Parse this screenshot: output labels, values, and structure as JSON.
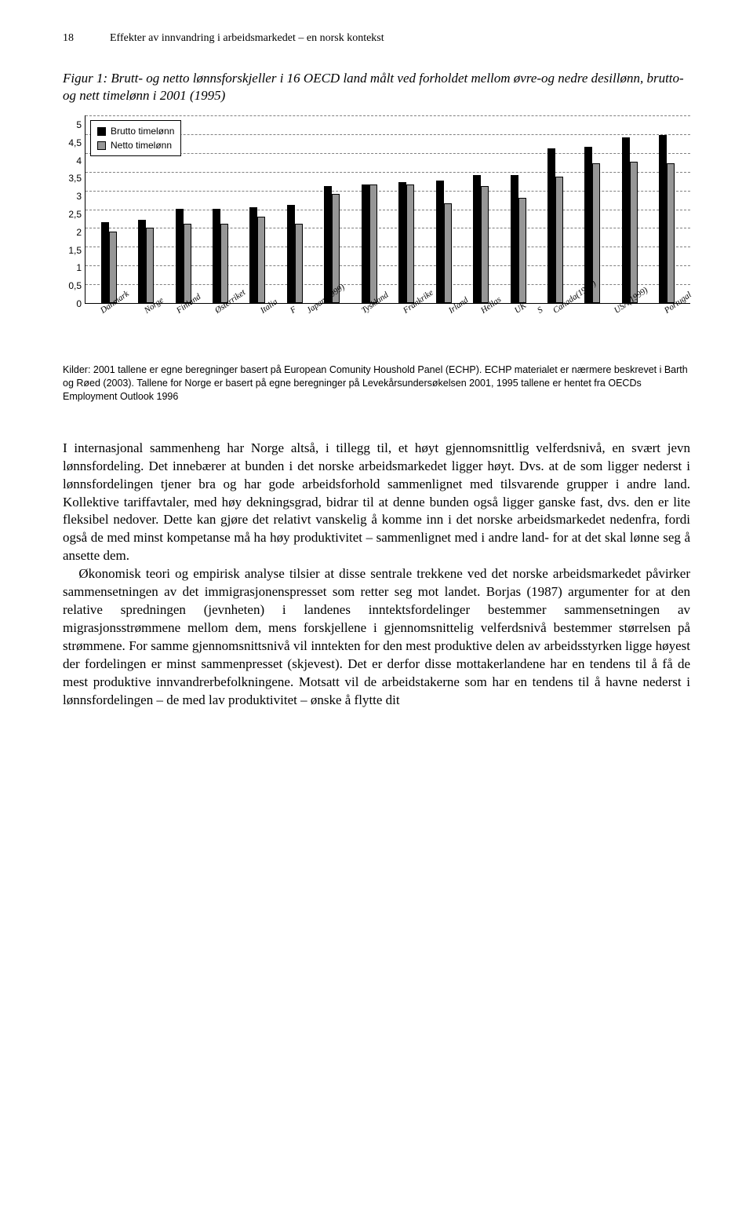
{
  "page_number": "18",
  "header_title": "Effekter av innvandring i arbeidsmarkedet – en norsk kontekst",
  "figure_caption": "Figur 1: Brutt- og netto lønnsforskjeller i 16 OECD land målt ved forholdet mellom øvre-og nedre desillønn, brutto-og nett timelønn i 2001 (1995)",
  "chart": {
    "type": "bar",
    "legend": {
      "brutto": "Brutto timelønn",
      "netto": "Netto timelønn"
    },
    "colors": {
      "brutto": "#000000",
      "netto": "#969696",
      "grid": "#808080",
      "background": "#ffffff"
    },
    "ylim": [
      0,
      5
    ],
    "ytick_step": 0.5,
    "yticks": [
      "5",
      "4,5",
      "4",
      "3,5",
      "3",
      "2,5",
      "2",
      "1,5",
      "1",
      "0,5",
      "0"
    ],
    "categories": [
      "Danmark",
      "Norge",
      "Finland",
      "Østerriket",
      "Italia",
      "F",
      "Japan(1999)",
      "Tyskland",
      "Frankrike",
      "Irland",
      "Hellas",
      "UK",
      "S",
      "Canada(1994)",
      "USA(1999)",
      "Portugal"
    ],
    "brutto": [
      2.15,
      2.2,
      2.5,
      2.5,
      2.55,
      2.6,
      3.1,
      3.15,
      3.2,
      3.25,
      3.4,
      3.4,
      4.1,
      4.15,
      4.4,
      4.45
    ],
    "netto": [
      1.9,
      2.0,
      2.1,
      2.1,
      2.3,
      2.1,
      2.9,
      3.15,
      3.15,
      2.65,
      3.1,
      2.8,
      3.35,
      3.7,
      3.75,
      3.7
    ]
  },
  "source_note": "Kilder: 2001 tallene er egne beregninger basert på European Comunity Houshold Panel (ECHP). ECHP materialet er nærmere beskrevet i Barth og Røed (2003). Tallene for Norge er basert på egne beregninger på Levekårsundersøkelsen 2001, 1995 tallene er hentet fra OECDs Employment Outlook 1996",
  "paragraphs": [
    "I internasjonal sammenheng har Norge altså, i tillegg til, et høyt gjennomsnittlig velferdsnivå, en svært jevn lønnsfordeling. Det innebærer at bunden i det norske arbeidsmarkedet ligger høyt. Dvs. at de som ligger nederst i lønnsfordelingen tjener bra og har gode arbeidsforhold sammenlignet med tilsvarende grupper i andre land. Kollektive tariffavtaler, med høy dekningsgrad, bidrar til at denne bunden også ligger ganske fast, dvs. den er lite fleksibel nedover. Dette kan gjøre det relativt vanskelig å komme inn i det norske arbeidsmarkedet nedenfra, fordi også de med minst kompetanse må ha høy produktivitet – sammenlignet med i andre land- for at det skal lønne seg å ansette dem.",
    "Økonomisk teori og empirisk analyse tilsier at disse sentrale trekkene ved det norske arbeidsmarkedet påvirker sammensetningen av det immigrasjonenspresset som retter seg mot landet. Borjas (1987) argumenter for at den relative spredningen (jevnheten) i landenes inntektsfordelinger bestemmer sammensetningen av migrasjonsstrømmene mellom dem, mens forskjellene i gjennomsnittelig velferdsnivå bestemmer størrelsen på strømmene. For samme gjennomsnittsnivå vil inntekten for den mest produktive delen av arbeidsstyrken ligge høyest der fordelingen er minst sammenpresset (skjevest). Det er derfor disse mottakerlandene har en tendens til å få de mest produktive innvandrerbefolkningene. Motsatt vil de arbeidstakerne som har en tendens til å havne nederst i lønnsfordelingen – de med lav produktivitet – ønske å flytte dit"
  ]
}
